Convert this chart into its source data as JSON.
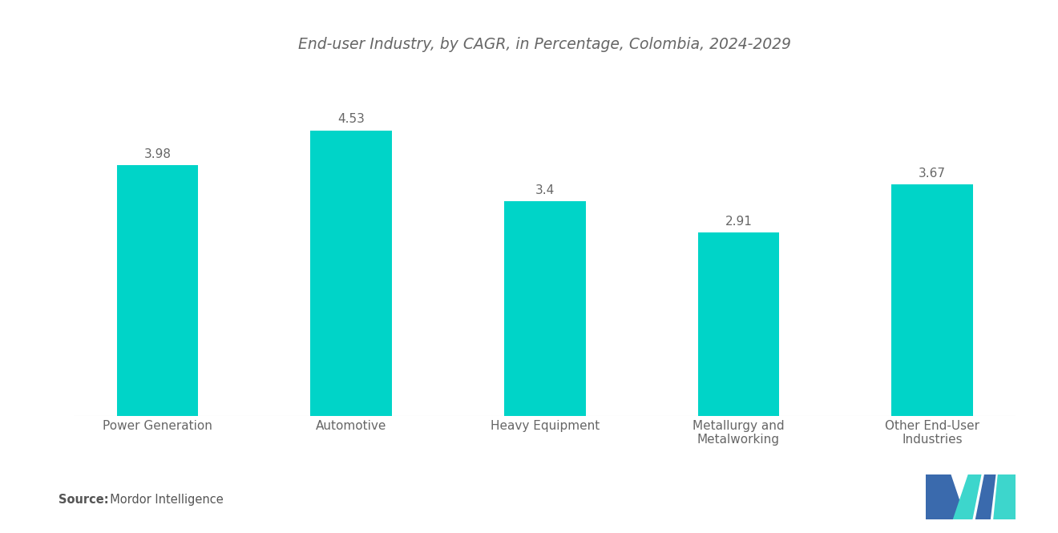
{
  "title": "End-user Industry, by CAGR, in Percentage, Colombia, 2024-2029",
  "categories": [
    "Power Generation",
    "Automotive",
    "Heavy Equipment",
    "Metallurgy and\nMetalworking",
    "Other End-User\nIndustries"
  ],
  "values": [
    3.98,
    4.53,
    3.4,
    2.91,
    3.67
  ],
  "bar_color": "#00D4C8",
  "value_labels": [
    "3.98",
    "4.53",
    "3.4",
    "2.91",
    "3.67"
  ],
  "background_color": "#ffffff",
  "title_color": "#666666",
  "label_color": "#666666",
  "value_color": "#666666",
  "source_bold": "Source:",
  "source_normal": "  Mordor Intelligence",
  "ylim": [
    0,
    5.5
  ],
  "title_fontsize": 13.5,
  "label_fontsize": 11,
  "value_fontsize": 11,
  "bar_width": 0.42,
  "logo_color_blue": "#3a6aad",
  "logo_color_teal": "#3dd6cc"
}
